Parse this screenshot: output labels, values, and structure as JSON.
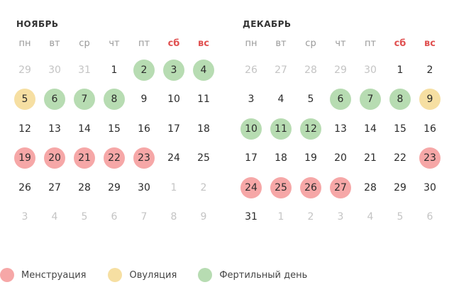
{
  "colors": {
    "menstruation": "#f6a7a7",
    "ovulation": "#f6dfa2",
    "fertile": "#b7dcb2",
    "weekend": "#e05050",
    "muted": "#c4c4c4"
  },
  "weekdays": [
    "пн",
    "вт",
    "ср",
    "чт",
    "пт",
    "сб",
    "вс"
  ],
  "months": [
    {
      "title": "НОЯБРЬ",
      "weeks": [
        [
          {
            "d": "29",
            "t": "other"
          },
          {
            "d": "30",
            "t": "other"
          },
          {
            "d": "31",
            "t": "other"
          },
          {
            "d": "1",
            "t": ""
          },
          {
            "d": "2",
            "t": "fertile"
          },
          {
            "d": "3",
            "t": "fertile"
          },
          {
            "d": "4",
            "t": "fertile"
          }
        ],
        [
          {
            "d": "5",
            "t": "ovulation"
          },
          {
            "d": "6",
            "t": "fertile"
          },
          {
            "d": "7",
            "t": "fertile"
          },
          {
            "d": "8",
            "t": "fertile"
          },
          {
            "d": "9",
            "t": ""
          },
          {
            "d": "10",
            "t": ""
          },
          {
            "d": "11",
            "t": ""
          }
        ],
        [
          {
            "d": "12",
            "t": ""
          },
          {
            "d": "13",
            "t": ""
          },
          {
            "d": "14",
            "t": ""
          },
          {
            "d": "15",
            "t": ""
          },
          {
            "d": "16",
            "t": ""
          },
          {
            "d": "17",
            "t": ""
          },
          {
            "d": "18",
            "t": ""
          }
        ],
        [
          {
            "d": "19",
            "t": "menstruation"
          },
          {
            "d": "20",
            "t": "menstruation"
          },
          {
            "d": "21",
            "t": "menstruation"
          },
          {
            "d": "22",
            "t": "menstruation"
          },
          {
            "d": "23",
            "t": "menstruation"
          },
          {
            "d": "24",
            "t": ""
          },
          {
            "d": "25",
            "t": ""
          }
        ],
        [
          {
            "d": "26",
            "t": ""
          },
          {
            "d": "27",
            "t": ""
          },
          {
            "d": "28",
            "t": ""
          },
          {
            "d": "29",
            "t": ""
          },
          {
            "d": "30",
            "t": ""
          },
          {
            "d": "1",
            "t": "other"
          },
          {
            "d": "2",
            "t": "other"
          }
        ],
        [
          {
            "d": "3",
            "t": "other"
          },
          {
            "d": "4",
            "t": "other"
          },
          {
            "d": "5",
            "t": "other"
          },
          {
            "d": "6",
            "t": "other"
          },
          {
            "d": "7",
            "t": "other"
          },
          {
            "d": "8",
            "t": "other"
          },
          {
            "d": "9",
            "t": "other"
          }
        ]
      ]
    },
    {
      "title": "ДЕКАБРЬ",
      "weeks": [
        [
          {
            "d": "26",
            "t": "other"
          },
          {
            "d": "27",
            "t": "other"
          },
          {
            "d": "28",
            "t": "other"
          },
          {
            "d": "29",
            "t": "other"
          },
          {
            "d": "30",
            "t": "other"
          },
          {
            "d": "1",
            "t": ""
          },
          {
            "d": "2",
            "t": ""
          }
        ],
        [
          {
            "d": "3",
            "t": ""
          },
          {
            "d": "4",
            "t": ""
          },
          {
            "d": "5",
            "t": ""
          },
          {
            "d": "6",
            "t": "fertile"
          },
          {
            "d": "7",
            "t": "fertile"
          },
          {
            "d": "8",
            "t": "fertile"
          },
          {
            "d": "9",
            "t": "ovulation"
          }
        ],
        [
          {
            "d": "10",
            "t": "fertile"
          },
          {
            "d": "11",
            "t": "fertile"
          },
          {
            "d": "12",
            "t": "fertile"
          },
          {
            "d": "13",
            "t": ""
          },
          {
            "d": "14",
            "t": ""
          },
          {
            "d": "15",
            "t": ""
          },
          {
            "d": "16",
            "t": ""
          }
        ],
        [
          {
            "d": "17",
            "t": ""
          },
          {
            "d": "18",
            "t": ""
          },
          {
            "d": "19",
            "t": ""
          },
          {
            "d": "20",
            "t": ""
          },
          {
            "d": "21",
            "t": ""
          },
          {
            "d": "22",
            "t": ""
          },
          {
            "d": "23",
            "t": "menstruation"
          }
        ],
        [
          {
            "d": "24",
            "t": "menstruation"
          },
          {
            "d": "25",
            "t": "menstruation"
          },
          {
            "d": "26",
            "t": "menstruation"
          },
          {
            "d": "27",
            "t": "menstruation"
          },
          {
            "d": "28",
            "t": ""
          },
          {
            "d": "29",
            "t": ""
          },
          {
            "d": "30",
            "t": ""
          }
        ],
        [
          {
            "d": "31",
            "t": ""
          },
          {
            "d": "1",
            "t": "other"
          },
          {
            "d": "2",
            "t": "other"
          },
          {
            "d": "3",
            "t": "other"
          },
          {
            "d": "4",
            "t": "other"
          },
          {
            "d": "5",
            "t": "other"
          },
          {
            "d": "6",
            "t": "other"
          }
        ]
      ]
    }
  ],
  "legend": [
    {
      "label": "Менструация",
      "key": "menstruation"
    },
    {
      "label": "Овуляция",
      "key": "ovulation"
    },
    {
      "label": "Фертильный день",
      "key": "fertile"
    }
  ]
}
